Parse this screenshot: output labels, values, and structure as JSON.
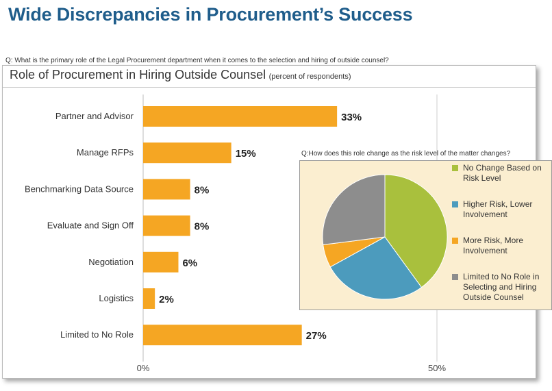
{
  "page": {
    "title": "Wide Discrepancies in Procurement’s Success",
    "question": "Q: What is the primary role of the Legal Procurement department when it comes to the selection and hiring of outside counsel?"
  },
  "chart_data": [
    {
      "type": "bar",
      "orientation": "horizontal",
      "title": "Role of Procurement in Hiring Outside Counsel",
      "subtitle": "(percent of respondents)",
      "categories": [
        "Partner and Advisor",
        "Manage RFPs",
        "Benchmarking Data Source",
        "Evaluate and Sign Off",
        "Negotiation",
        "Logistics",
        "Limited to No Role"
      ],
      "values": [
        33,
        15,
        8,
        8,
        6,
        2,
        27
      ],
      "value_labels": [
        "33%",
        "15%",
        "8%",
        "8%",
        "6%",
        "2%",
        "27%"
      ],
      "xlim": [
        0,
        50
      ],
      "x_tick_labels": [
        "0%",
        "50%"
      ],
      "bar_color": "#f5a623",
      "grid": false
    },
    {
      "type": "pie",
      "title": "Q:How does this role change as the risk level of the matter changes?",
      "labels": [
        "No Change Based on Risk Level",
        "Higher Risk, Lower Involvement",
        "More Risk, More Involvement",
        "Limited to No Role in Selecting and Hiring Outside Counsel"
      ],
      "values": [
        40,
        27,
        6,
        27
      ],
      "colors": [
        "#a9c03d",
        "#4c9bbd",
        "#f5a623",
        "#8d8d8d"
      ],
      "legend_position": "right"
    }
  ]
}
